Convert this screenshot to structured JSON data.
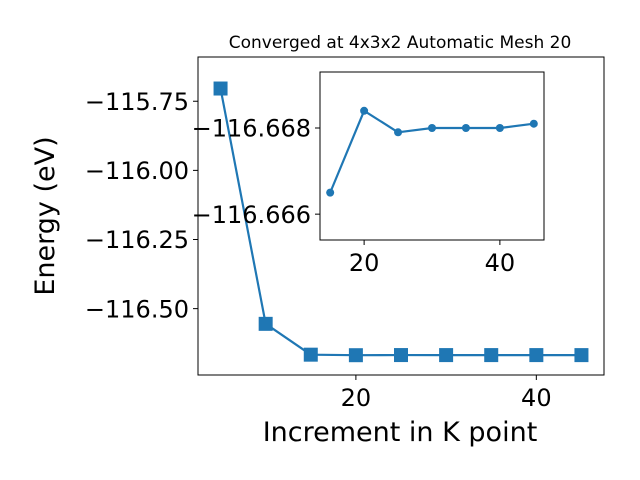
{
  "chart_data": [
    {
      "type": "line",
      "title": "Converged at 4x3x2 Automatic Mesh 20",
      "xlabel": "Increment in K point",
      "ylabel": "Energy (eV)",
      "xlim": [
        2.5,
        47.5
      ],
      "ylim": [
        -116.74,
        -115.59
      ],
      "xticks": [
        20,
        40
      ],
      "xtick_labels": [
        "20",
        "40"
      ],
      "yticks": [
        -115.75,
        -116.0,
        -116.25,
        -116.5
      ],
      "ytick_labels": [
        "−115.75",
        "−116.00",
        "−116.25",
        "−116.50"
      ],
      "grid": false,
      "marker": "square",
      "color": "#1f77b4",
      "series": [
        {
          "x": [
            5,
            10,
            15,
            20,
            25,
            30,
            35,
            40,
            45
          ],
          "y": [
            -115.704,
            -116.555,
            -116.6665,
            -116.6684,
            -116.6679,
            -116.668,
            -116.668,
            -116.668,
            -116.6681
          ]
        }
      ]
    },
    {
      "type": "line",
      "role": "inset",
      "title": "",
      "xlabel": "",
      "ylabel": "",
      "xlim": [
        13.5,
        46.5
      ],
      "ylim": [
        -116.6654,
        -116.6693
      ],
      "xticks": [
        20,
        40
      ],
      "xtick_labels": [
        "20",
        "40"
      ],
      "yticks": [
        -116.668,
        -116.666
      ],
      "ytick_labels": [
        "−116.668",
        "−116.666"
      ],
      "grid": false,
      "marker": "circle",
      "color": "#1f77b4",
      "series": [
        {
          "x": [
            15,
            20,
            25,
            30,
            35,
            40,
            45
          ],
          "y": [
            -116.6665,
            -116.6684,
            -116.6679,
            -116.668,
            -116.668,
            -116.668,
            -116.6681
          ]
        }
      ]
    }
  ]
}
